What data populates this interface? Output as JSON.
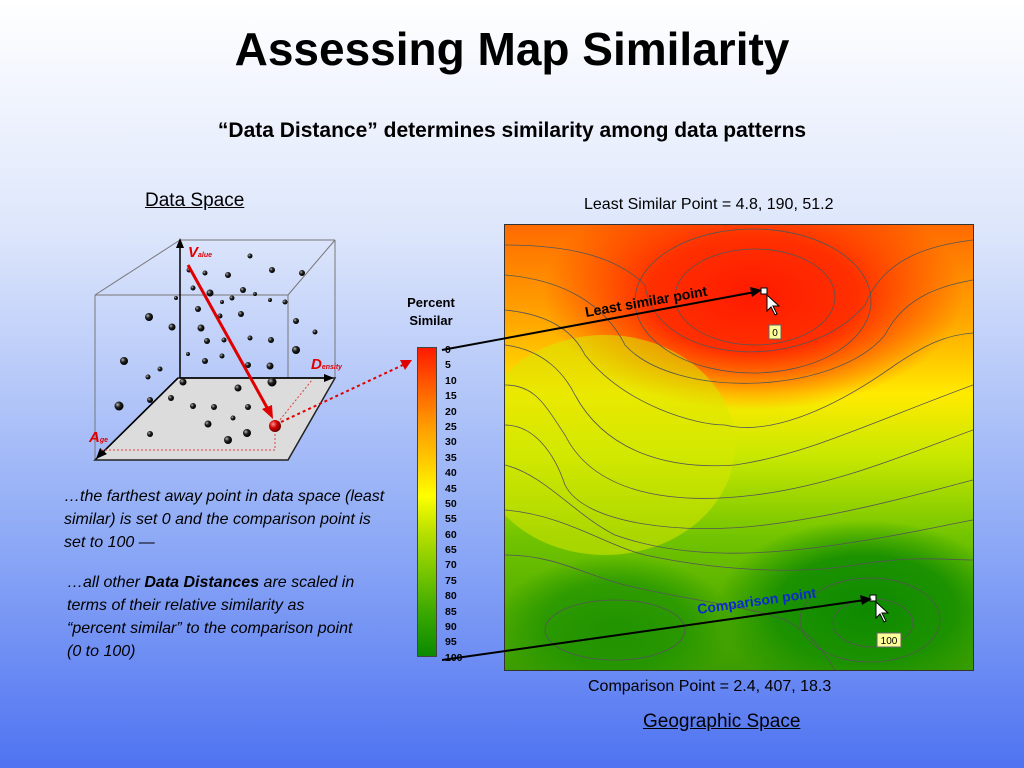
{
  "title": "Assessing Map Similarity",
  "subtitle": "“Data Distance” determines similarity among data patterns",
  "data_space": {
    "label": "Data Space",
    "axis_value": "V",
    "axis_value_sub": "alue",
    "axis_density": "D",
    "axis_density_sub": "ensity",
    "axis_age": "A",
    "axis_age_sub": "ge"
  },
  "legend": {
    "title_line1": "Percent",
    "title_line2": "Similar",
    "ticks": [
      "0",
      "5",
      "10",
      "15",
      "20",
      "25",
      "30",
      "35",
      "40",
      "45",
      "50",
      "55",
      "60",
      "65",
      "70",
      "75",
      "80",
      "85",
      "90",
      "95",
      "100"
    ]
  },
  "text": {
    "para1": "…the farthest away point in data space (least similar) is set 0 and the comparison point is set to 100 —",
    "para2_pre": "…all other ",
    "para2_bold": "Data Distances",
    "para2_post": " are scaled in terms of their relative similarity as “percent similar” to the comparison point (0 to 100)"
  },
  "map": {
    "least_similar_label": "Least Similar Point = 4.8, 190, 51.2",
    "comparison_label": "Comparison Point = 2.4, 407, 18.3",
    "least_pointer_text": "Least similar point",
    "comparison_pointer_text": "Comparison point",
    "least_value_tag": "0",
    "comparison_value_tag": "100",
    "geographic_label": "Geographic Space"
  },
  "colors": {
    "arrow_red": "#e00000",
    "high_dissimilar": "#ff1a00",
    "high_similar": "#0a8a00"
  }
}
